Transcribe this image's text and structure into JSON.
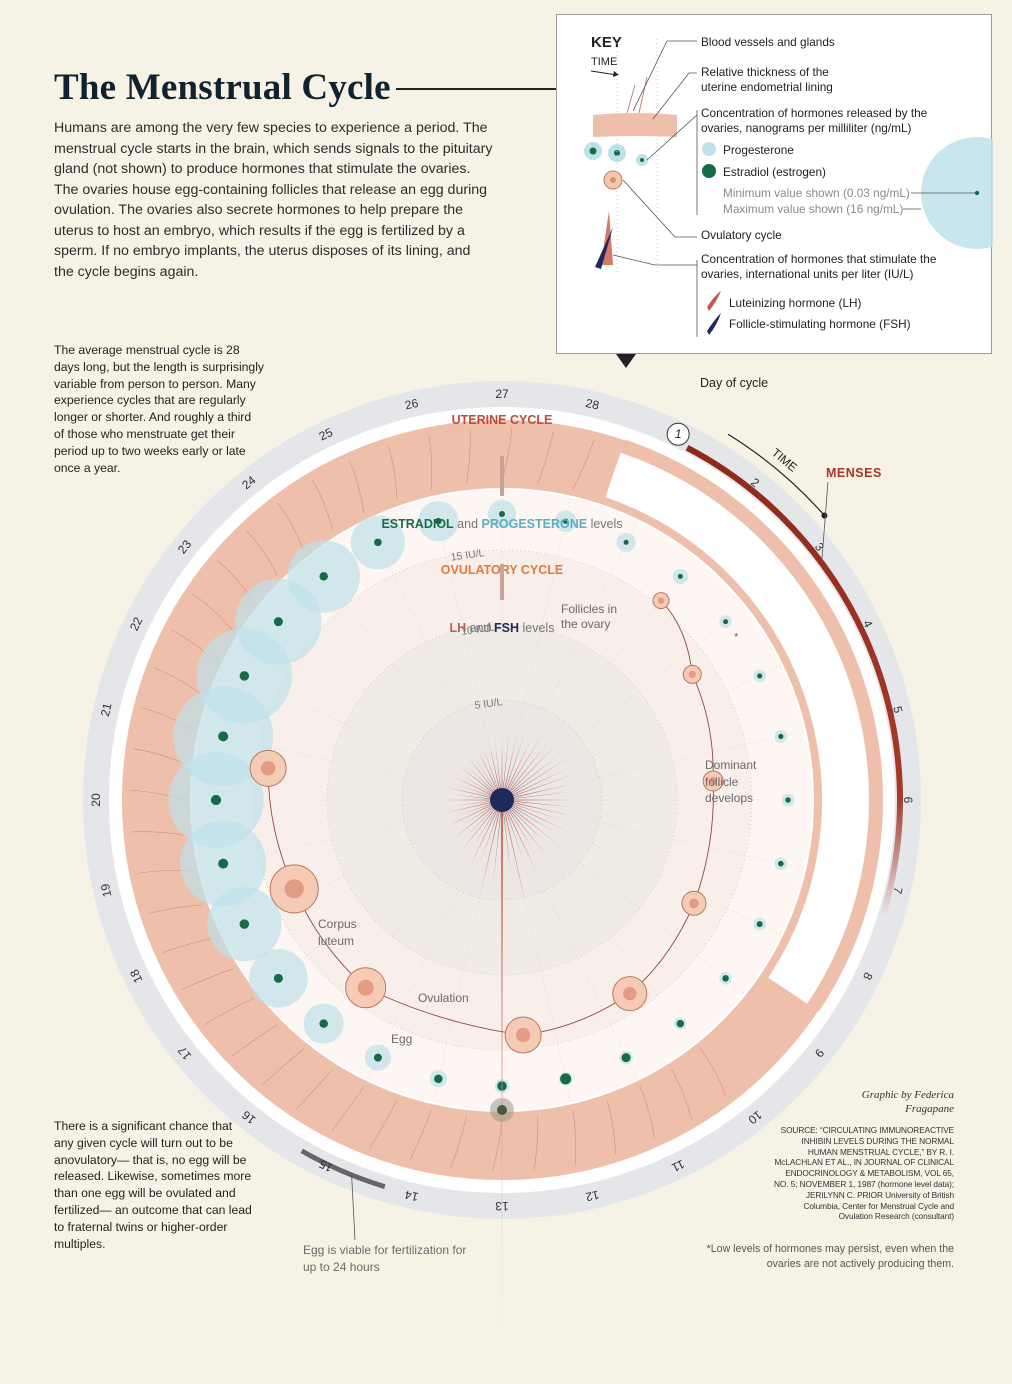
{
  "title": "The Menstrual Cycle",
  "intro": "Humans are among the very few species to experience a period. The menstrual cycle starts in the brain, which sends signals to the pituitary gland (not shown) to produce hormones that stimulate the ovaries. The ovaries house egg-containing follicles that release an egg during ovulation. The ovaries also secrete hormones to help prepare the uterus to host an embryo, which results if the egg is fertilized by a sperm. If no embryo implants, the uterus disposes of its lining, and the cycle begins again.",
  "side_note_top": "The average menstrual cycle is 28 days long, but the length is surprisingly variable from person to person. Many experience cycles that are regularly longer or shorter. And roughly a third of those who menstruate get their period up to two weeks early or late once a year.",
  "side_note_bottom": "There is a significant chance that any given cycle will turn out to be anovulatory— that is, no egg will be released. Likewise, sometimes more than one egg will be ovulated and fertilized— an outcome that can lead to fraternal twins or higher-order multiples.",
  "key": {
    "heading": "KEY",
    "time": "TIME",
    "blood_vessels": "Blood vessels and glands",
    "thickness": "Relative thickness of the uterine endometrial lining",
    "concentration_ovaries": "Concentration of hormones released by the ovaries, nanograms per milliliter (ng/mL)",
    "progesterone": "Progesterone",
    "estradiol": "Estradiol (estrogen)",
    "min_value": "Minimum value shown (0.03 ng/mL)",
    "max_value": "Maximum value shown (16 ng/mL)",
    "ovulatory_cycle": "Ovulatory cycle",
    "concentration_stimulate": "Concentration of hormones that stimulate the ovaries, international units per liter (IU/L)",
    "lh": "Luteinizing hormone (LH)",
    "fsh": "Follicle-stimulating hormone (FSH)"
  },
  "diagram": {
    "day_of_cycle": "Day of cycle",
    "time": "TIME",
    "menses": "MENSES",
    "uterine_cycle": "UTERINE CYCLE",
    "estradiol_word": "ESTRADIOL",
    "and_word": "and",
    "progesterone_word": "PROGESTERONE",
    "levels_word": "levels",
    "ovulatory_cycle": "OVULATORY CYCLE",
    "lh_word": "LH",
    "fsh_word": "FSH",
    "follicles": "Follicles in the ovary",
    "dominant": "Dominant follicle develops",
    "corpus": "Corpus luteum",
    "ovulation": "Ovulation",
    "egg": "Egg",
    "egg_viable": "Egg is viable for fertilization for up to 24 hours",
    "scale_labels": [
      "5 IU/L",
      "10 IU/L",
      "15 IU/L"
    ],
    "asterisk": "*",
    "day1": "1",
    "days": [
      "2",
      "3",
      "4",
      "5",
      "6",
      "7",
      "8",
      "9",
      "10",
      "11",
      "12",
      "13",
      "14",
      "15",
      "16",
      "17",
      "18",
      "19",
      "20",
      "21",
      "22",
      "23",
      "24",
      "25",
      "26",
      "27",
      "28"
    ]
  },
  "credit": "Graphic by Federica Fragapane",
  "source": "SOURCE: “CIRCULATING IMMUNOREACTIVE INHIBIN LEVELS DURING THE NORMAL HUMAN MENSTRUAL CYCLE,” BY R. I. McLACHLAN ET AL., IN JOURNAL OF CLINICAL ENDOCRINOLOGY & METABOLISM, VOL 65, NO. 5; NOVEMBER 1, 1987 (hormone level data); JERILYNN C. PRIOR University of British Columbia, Center for Menstrual Cycle and Ovulation Research (consultant)",
  "footnote": "*Low levels of hormones may persist, even when the ovaries are not actively producing them.",
  "hormones": {
    "progesterone_relative": [
      0.12,
      0.08,
      0.05,
      0.05,
      0.05,
      0.05,
      0.05,
      0.05,
      0.05,
      0.05,
      0.06,
      0.06,
      0.07,
      0.1,
      0.2,
      0.35,
      0.55,
      0.72,
      0.85,
      0.95,
      1.0,
      0.95,
      0.85,
      0.7,
      0.5,
      0.35,
      0.22,
      0.15
    ],
    "estradiol_relative": [
      0.1,
      0.1,
      0.1,
      0.12,
      0.12,
      0.14,
      0.16,
      0.2,
      0.25,
      0.35,
      0.5,
      0.7,
      0.55,
      0.45,
      0.4,
      0.45,
      0.5,
      0.55,
      0.6,
      0.62,
      0.6,
      0.55,
      0.5,
      0.45,
      0.35,
      0.25,
      0.2,
      0.14
    ],
    "lh_relative": [
      0.25,
      0.25,
      0.25,
      0.25,
      0.25,
      0.25,
      0.25,
      0.26,
      0.27,
      0.28,
      0.35,
      0.6,
      1.0,
      0.5,
      0.3,
      0.22,
      0.2,
      0.18,
      0.17,
      0.16,
      0.16,
      0.15,
      0.15,
      0.15,
      0.16,
      0.18,
      0.2,
      0.22
    ],
    "fsh_relative": [
      0.45,
      0.48,
      0.46,
      0.42,
      0.38,
      0.34,
      0.32,
      0.3,
      0.28,
      0.26,
      0.3,
      0.45,
      0.55,
      0.3,
      0.2,
      0.18,
      0.16,
      0.15,
      0.15,
      0.15,
      0.14,
      0.14,
      0.15,
      0.18,
      0.22,
      0.28,
      0.34,
      0.4
    ]
  },
  "colors": {
    "background": "#f6f3e6",
    "lining": "#eebfaa",
    "menses": "#8e2a1a",
    "progesterone": "#bfe1ea",
    "estradiol": "#146b45",
    "lh": "#c9574a",
    "fsh": "#1f2a5c",
    "uterine_label": "#c24a3a",
    "ovulatory_label": "#e07b3c",
    "estradiol_label": "#1c6b4c",
    "progesterone_label": "#58aec4"
  }
}
